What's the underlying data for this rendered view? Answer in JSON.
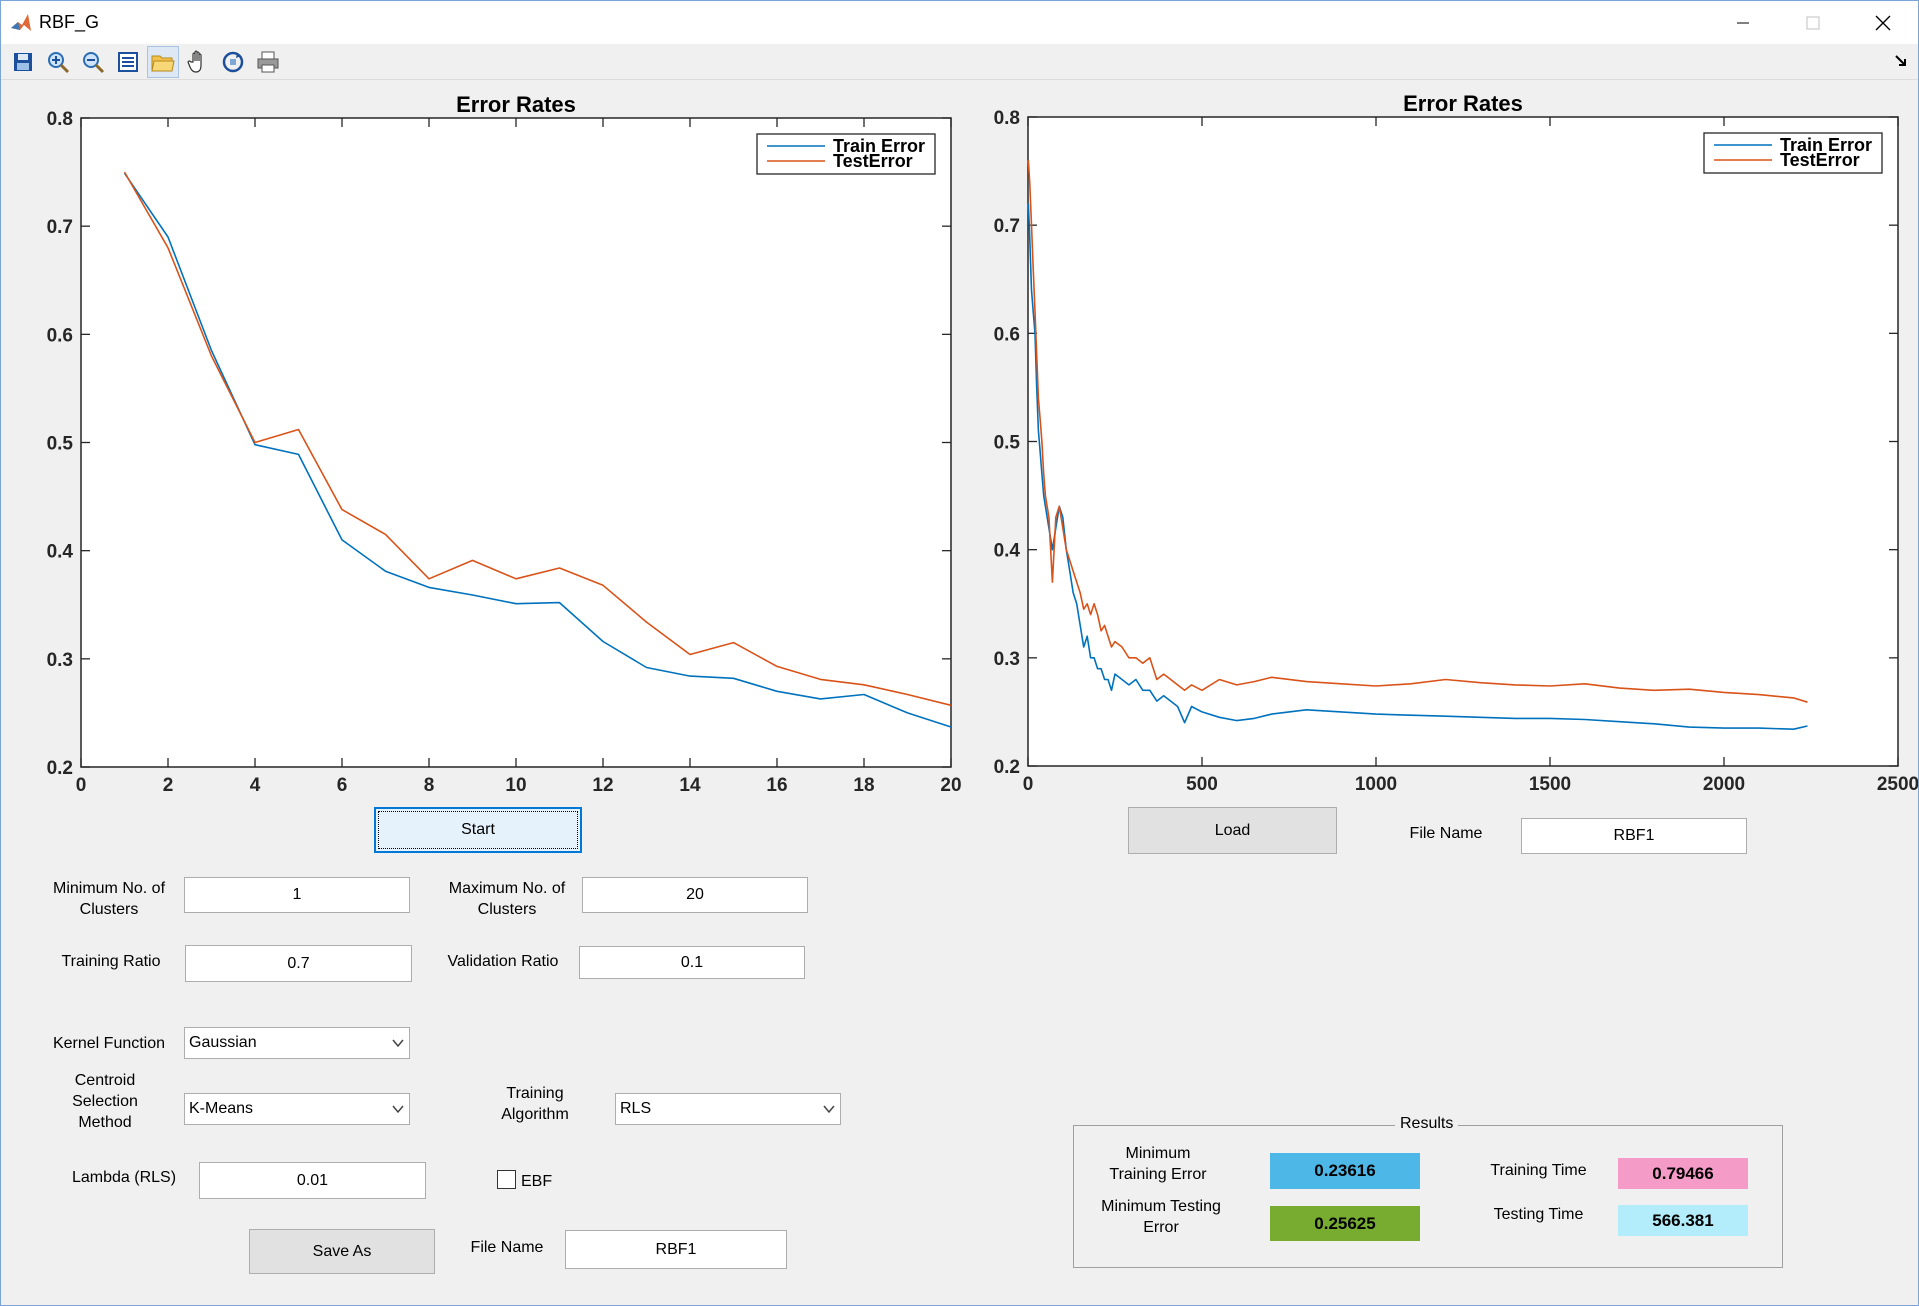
{
  "window": {
    "title": "RBF_G"
  },
  "colors": {
    "train": "#0072bd",
    "test": "#d95319",
    "min_train_bg": "#4db8e8",
    "min_test_bg": "#77ac30",
    "train_time_bg": "#f59bc8",
    "test_time_bg": "#b3ecfa"
  },
  "toolbar": {
    "icons": [
      "save-icon",
      "zoom-in-icon",
      "zoom-out-icon",
      "data-cursor-icon",
      "open-folder-icon",
      "pan-hand-icon",
      "rotate-icon",
      "print-icon"
    ]
  },
  "chart_data": [
    {
      "type": "line",
      "title": "Error Rates",
      "xlabel": "",
      "ylabel": "",
      "xlim": [
        0,
        20
      ],
      "ylim": [
        0.2,
        0.8
      ],
      "xticks": [
        "0",
        "2",
        "4",
        "6",
        "8",
        "10",
        "12",
        "14",
        "16",
        "18",
        "20"
      ],
      "yticks": [
        "0.2",
        "0.3",
        "0.4",
        "0.5",
        "0.6",
        "0.7",
        "0.8"
      ],
      "legend": "top-right",
      "grid": false,
      "x": [
        1,
        2,
        3,
        4,
        5,
        6,
        7,
        8,
        9,
        10,
        11,
        12,
        13,
        14,
        15,
        16,
        17,
        18,
        19,
        20
      ],
      "series": [
        {
          "name": "Train Error",
          "values": [
            0.749,
            0.69,
            0.585,
            0.498,
            0.489,
            0.41,
            0.381,
            0.366,
            0.359,
            0.351,
            0.352,
            0.316,
            0.292,
            0.284,
            0.282,
            0.27,
            0.263,
            0.267,
            0.25,
            0.237
          ]
        },
        {
          "name": "TestError",
          "values": [
            0.75,
            0.68,
            0.58,
            0.5,
            0.512,
            0.438,
            0.415,
            0.374,
            0.391,
            0.374,
            0.384,
            0.368,
            0.334,
            0.304,
            0.315,
            0.293,
            0.281,
            0.276,
            0.267,
            0.257
          ]
        }
      ]
    },
    {
      "type": "line",
      "title": "Error Rates",
      "xlabel": "",
      "ylabel": "",
      "xlim": [
        0,
        2500
      ],
      "ylim": [
        0.2,
        0.8
      ],
      "xticks": [
        "0",
        "500",
        "1000",
        "1500",
        "2000",
        "2500"
      ],
      "yticks": [
        "0.2",
        "0.3",
        "0.4",
        "0.5",
        "0.6",
        "0.7",
        "0.8"
      ],
      "legend": "top-right",
      "grid": false,
      "series": [
        {
          "name": "Train Error",
          "x": [
            1,
            5,
            10,
            15,
            20,
            25,
            30,
            35,
            40,
            45,
            50,
            60,
            70,
            80,
            90,
            100,
            110,
            120,
            130,
            140,
            150,
            160,
            170,
            180,
            190,
            200,
            210,
            220,
            230,
            240,
            250,
            270,
            290,
            310,
            330,
            350,
            370,
            390,
            410,
            430,
            450,
            470,
            500,
            550,
            600,
            650,
            700,
            800,
            900,
            1000,
            1100,
            1200,
            1300,
            1400,
            1500,
            1600,
            1700,
            1800,
            1900,
            2000,
            2100,
            2200,
            2240
          ],
          "values": [
            0.72,
            0.69,
            0.64,
            0.62,
            0.6,
            0.55,
            0.51,
            0.49,
            0.47,
            0.45,
            0.44,
            0.42,
            0.4,
            0.42,
            0.44,
            0.43,
            0.4,
            0.38,
            0.36,
            0.35,
            0.33,
            0.31,
            0.32,
            0.3,
            0.3,
            0.29,
            0.29,
            0.28,
            0.28,
            0.27,
            0.285,
            0.28,
            0.275,
            0.28,
            0.27,
            0.27,
            0.26,
            0.265,
            0.26,
            0.255,
            0.24,
            0.255,
            0.25,
            0.245,
            0.242,
            0.244,
            0.248,
            0.252,
            0.25,
            0.248,
            0.247,
            0.246,
            0.245,
            0.244,
            0.244,
            0.243,
            0.241,
            0.239,
            0.236,
            0.235,
            0.235,
            0.234,
            0.237
          ]
        },
        {
          "name": "TestError",
          "x": [
            1,
            5,
            10,
            15,
            20,
            25,
            30,
            35,
            40,
            45,
            50,
            60,
            70,
            80,
            90,
            100,
            110,
            120,
            130,
            140,
            150,
            160,
            170,
            180,
            190,
            200,
            210,
            220,
            230,
            240,
            250,
            270,
            290,
            310,
            330,
            350,
            370,
            390,
            410,
            430,
            450,
            470,
            500,
            550,
            600,
            650,
            700,
            800,
            900,
            1000,
            1100,
            1200,
            1300,
            1400,
            1500,
            1600,
            1700,
            1800,
            1900,
            2000,
            2100,
            2200,
            2240
          ],
          "values": [
            0.76,
            0.74,
            0.7,
            0.66,
            0.62,
            0.58,
            0.54,
            0.52,
            0.5,
            0.47,
            0.45,
            0.43,
            0.37,
            0.43,
            0.44,
            0.42,
            0.4,
            0.39,
            0.38,
            0.37,
            0.36,
            0.345,
            0.35,
            0.34,
            0.35,
            0.34,
            0.325,
            0.33,
            0.32,
            0.31,
            0.315,
            0.31,
            0.3,
            0.3,
            0.295,
            0.3,
            0.28,
            0.285,
            0.28,
            0.275,
            0.27,
            0.275,
            0.27,
            0.28,
            0.275,
            0.278,
            0.282,
            0.278,
            0.276,
            0.274,
            0.276,
            0.28,
            0.277,
            0.275,
            0.274,
            0.276,
            0.272,
            0.27,
            0.271,
            0.268,
            0.266,
            0.263,
            0.259
          ]
        }
      ]
    }
  ],
  "controls": {
    "start_label": "Start",
    "load_label": "Load",
    "save_as_label": "Save As",
    "file_name_label_top": "File Name",
    "file_name_value_top": "RBF1",
    "file_name_label_bottom": "File Name",
    "file_name_value_bottom": "RBF1",
    "min_clusters_label_1": "Minimum No. of",
    "min_clusters_label_2": "Clusters",
    "min_clusters_value": "1",
    "max_clusters_label_1": "Maximum No. of",
    "max_clusters_label_2": "Clusters",
    "max_clusters_value": "20",
    "training_ratio_label": "Training Ratio",
    "training_ratio_value": "0.7",
    "validation_ratio_label": "Validation Ratio",
    "validation_ratio_value": "0.1",
    "kernel_label": "Kernel Function",
    "kernel_value": "Gaussian",
    "centroid_label_1": "Centroid",
    "centroid_label_2": "Selection",
    "centroid_label_3": "Method",
    "centroid_value": "K-Means",
    "algorithm_label_1": "Training",
    "algorithm_label_2": "Algorithm",
    "algorithm_value": "RLS",
    "lambda_label": "Lambda (RLS)",
    "lambda_value": "0.01",
    "ebf_label": "EBF",
    "ebf_checked": false
  },
  "results": {
    "title": "Results",
    "min_train_label_1": "Minimum",
    "min_train_label_2": "Training Error",
    "min_train_value": "0.23616",
    "min_test_label_1": "Minimum  Testing",
    "min_test_label_2": "Error",
    "min_test_value": "0.25625",
    "train_time_label": "Training Time",
    "train_time_value": "0.79466",
    "test_time_label": "Testing Time",
    "test_time_value": "566.381"
  }
}
